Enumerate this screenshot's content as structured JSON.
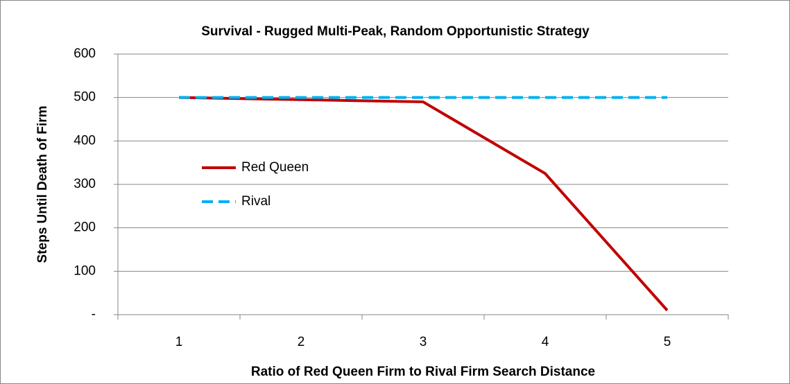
{
  "chart_data": {
    "type": "line",
    "title": "Survival - Rugged Multi-Peak, Random Opportunistic Strategy",
    "xlabel": "Ratio of Red Queen Firm to Rival Firm Search Distance",
    "ylabel": "Steps Until Death of Firm",
    "categories": [
      1,
      2,
      3,
      4,
      5
    ],
    "series": [
      {
        "name": "Red Queen",
        "color": "#c00000",
        "dash": false,
        "values": [
          500,
          495,
          490,
          325,
          10
        ]
      },
      {
        "name": "Rival",
        "color": "#00b0f0",
        "dash": true,
        "values": [
          500,
          500,
          500,
          500,
          500
        ]
      }
    ],
    "ylim": [
      0,
      600
    ],
    "yticks": [
      {
        "value": 0,
        "label": "-"
      },
      100,
      200,
      300,
      400,
      500,
      600
    ],
    "grid": true
  }
}
